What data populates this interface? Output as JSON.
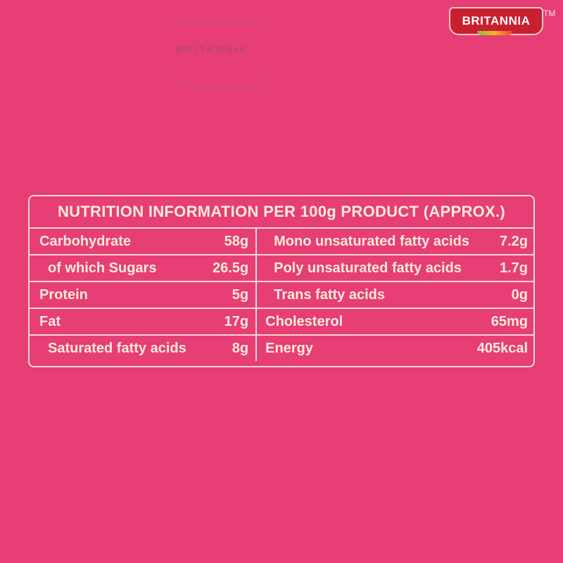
{
  "brand": {
    "logo_text": "BRITANNIA",
    "trademark": "TM",
    "colors": {
      "background": "#E63E75",
      "text": "#FCEBD8",
      "logo_red": "#C8202E"
    }
  },
  "ghost_logo": {
    "text": "BRITANNIA"
  },
  "nutrition": {
    "title": "NUTRITION INFORMATION PER 100g PRODUCT (APPROX.)",
    "rows": [
      {
        "left_label": "Carbohydrate",
        "left_value": "58g",
        "right_label": "Mono unsaturated fatty acids",
        "right_value": "7.2g"
      },
      {
        "left_label": "of which Sugars",
        "left_value": "26.5g",
        "right_label": "Poly unsaturated fatty acids",
        "right_value": "1.7g"
      },
      {
        "left_label": "Protein",
        "left_value": "5g",
        "right_label": "Trans fatty acids",
        "right_value": "0g"
      },
      {
        "left_label": "Fat",
        "left_value": "17g",
        "right_label": "Cholesterol",
        "right_value": "65mg"
      },
      {
        "left_label": "Saturated fatty acids",
        "left_value": "8g",
        "right_label": "Energy",
        "right_value": "405kcal"
      }
    ]
  }
}
